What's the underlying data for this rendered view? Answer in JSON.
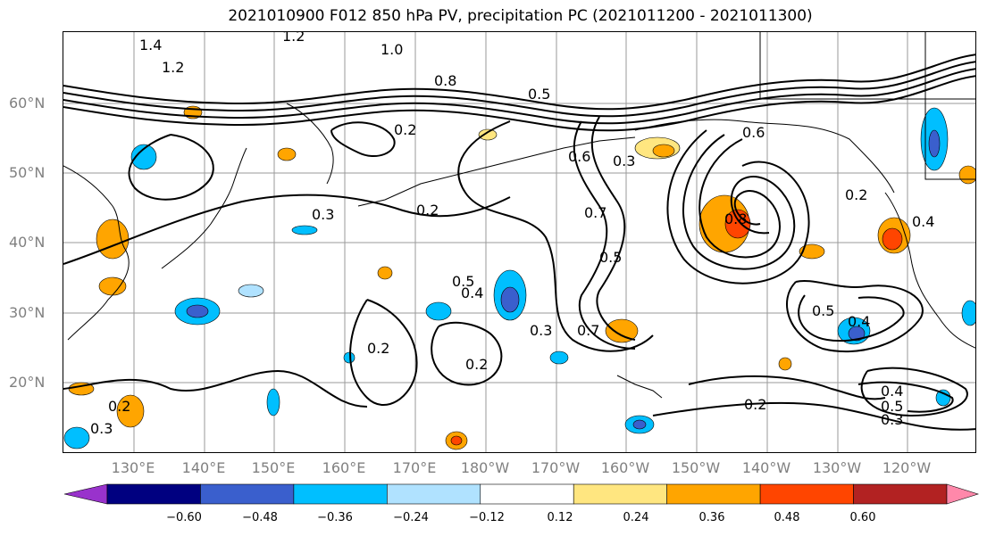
{
  "title": "2021010900 F012 850 hPa PV, precipitation PC (2021011200 - 2021011300)",
  "lat_labels": [
    "60°N",
    "50°N",
    "40°N",
    "30°N",
    "20°N"
  ],
  "lon_labels": [
    "130°E",
    "140°E",
    "150°E",
    "160°E",
    "170°E",
    "180°W",
    "170°W",
    "160°W",
    "150°W",
    "140°W",
    "130°W",
    "120°W"
  ],
  "contour_labels": [
    "1.2",
    "1.4",
    "1.0",
    "1.2",
    "0.8",
    "0.5",
    "0.2",
    "0.6",
    "0.7",
    "0.3",
    "0.2",
    "0.3",
    "0.5",
    "0.4",
    "0.7",
    "0.5",
    "0.2",
    "0.3",
    "0.2",
    "0.2",
    "0.2",
    "0.4",
    "0.5",
    "0.3",
    "0.8",
    "0.6",
    "0.4",
    "0.2",
    "0.5",
    "0.4",
    "0.3"
  ],
  "colorbar": {
    "labels": [
      "−0.60",
      "−0.48",
      "−0.36",
      "−0.24",
      "−0.12",
      "0.12",
      "0.24",
      "0.36",
      "0.48",
      "0.60"
    ],
    "colors": [
      "#9932CC",
      "#000080",
      "#3A5FCD",
      "#00BFFF",
      "#B0E2FF",
      "#FFFFFF",
      "#FFE680",
      "#FFA500",
      "#FF4500",
      "#B22222",
      "#FF88AA"
    ]
  }
}
